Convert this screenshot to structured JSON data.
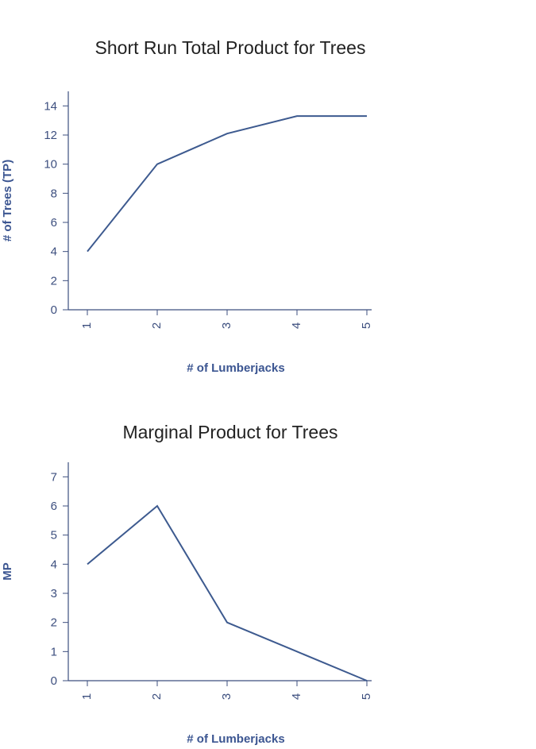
{
  "chart_data": [
    {
      "type": "line",
      "title": "Short Run Total Product for Trees",
      "x_label": "# of Lumberjacks",
      "y_label": "# of Trees (TP)",
      "categories": [
        "1",
        "2",
        "3",
        "4",
        "5"
      ],
      "values": [
        4,
        10,
        12.1,
        13.3,
        13.3
      ],
      "color": "#3d5a8f",
      "ylim": [
        0,
        15
      ],
      "yticks": [
        0,
        2,
        4,
        6,
        8,
        10,
        12,
        14
      ]
    },
    {
      "type": "line",
      "title": "Marginal Product for Trees",
      "x_label": "# of Lumberjacks",
      "y_label": "MP",
      "categories": [
        "1",
        "2",
        "3",
        "4",
        "5"
      ],
      "values": [
        4,
        6,
        2,
        1,
        0
      ],
      "color": "#3d5a8f",
      "ylim": [
        0,
        7.5
      ],
      "yticks": [
        0,
        1,
        2,
        3,
        4,
        5,
        6,
        7
      ]
    }
  ]
}
